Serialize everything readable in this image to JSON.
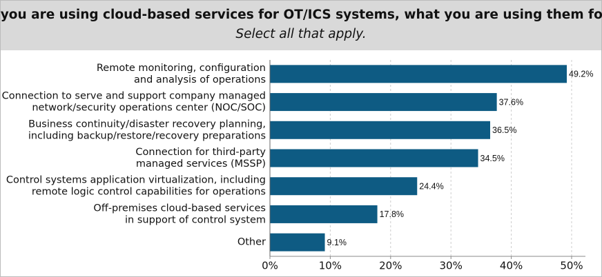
{
  "chart_data": {
    "type": "bar",
    "orientation": "horizontal",
    "title": "If you are using cloud-based services for OT/ICS systems, what you are using them for?",
    "subtitle": "Select all that apply.",
    "categories": [
      [
        "Remote monitoring, configuration",
        "and analysis of operations"
      ],
      [
        "Connection to serve and support company managed",
        "network/security operations center (NOC/SOC)"
      ],
      [
        "Business continuity/disaster recovery planning,",
        "including backup/restore/recovery preparations"
      ],
      [
        "Connection for third-party",
        "managed services (MSSP)"
      ],
      [
        "Control systems application virtualization, including",
        "remote logic control capabilities for operations"
      ],
      [
        "Off-premises cloud-based services",
        "in support of control system"
      ],
      [
        "Other"
      ]
    ],
    "values": [
      49.2,
      37.6,
      36.5,
      34.5,
      24.4,
      17.8,
      9.1
    ],
    "value_labels": [
      "49.2%",
      "37.6%",
      "36.5%",
      "34.5%",
      "24.4%",
      "17.8%",
      "9.1%"
    ],
    "color": "#0e5b83",
    "xlim": [
      0,
      50
    ],
    "xticks": [
      {
        "value": 0,
        "label": "0%"
      },
      {
        "value": 10,
        "label": "10%"
      },
      {
        "value": 20,
        "label": "20%"
      },
      {
        "value": 30,
        "label": "30%"
      },
      {
        "value": 40,
        "label": "40%"
      },
      {
        "value": 50,
        "label": "50%"
      }
    ],
    "grid": true
  }
}
